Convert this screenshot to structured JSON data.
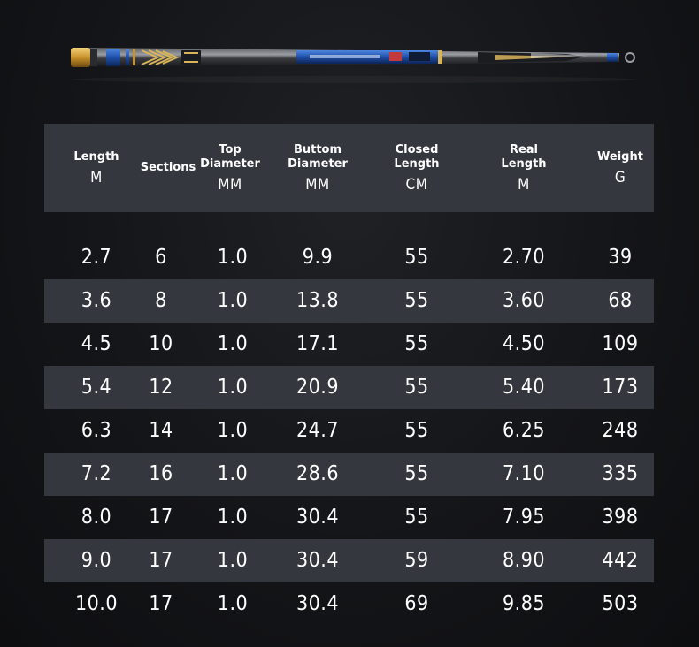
{
  "headers": [
    {
      "name": "Length",
      "unit": "M"
    },
    {
      "name": "Sections",
      "unit": ""
    },
    {
      "name": "Top\nDiameter",
      "unit": "MM"
    },
    {
      "name": "Buttom\nDiameter",
      "unit": "MM"
    },
    {
      "name": "Closed\nLength",
      "unit": "CM"
    },
    {
      "name": "Real\nLength",
      "unit": "M"
    },
    {
      "name": "Weight",
      "unit": "G"
    }
  ],
  "rows": [
    [
      "2.7",
      "6",
      "1.0",
      "9.9",
      "55",
      "2.70",
      "39"
    ],
    [
      "3.6",
      "8",
      "1.0",
      "13.8",
      "55",
      "3.60",
      "68"
    ],
    [
      "4.5",
      "10",
      "1.0",
      "17.1",
      "55",
      "4.50",
      "109"
    ],
    [
      "5.4",
      "12",
      "1.0",
      "20.9",
      "55",
      "5.40",
      "173"
    ],
    [
      "6.3",
      "14",
      "1.0",
      "24.7",
      "55",
      "6.25",
      "248"
    ],
    [
      "7.2",
      "16",
      "1.0",
      "28.6",
      "55",
      "7.10",
      "335"
    ],
    [
      "8.0",
      "17",
      "1.0",
      "30.4",
      "55",
      "7.95",
      "398"
    ],
    [
      "9.0",
      "17",
      "1.0",
      "30.4",
      "59",
      "8.90",
      "442"
    ],
    [
      "10.0",
      "17",
      "1.0",
      "30.4",
      "69",
      "9.85",
      "503"
    ]
  ],
  "colors": {
    "background": "#141518",
    "stripe": "#34373e",
    "text": "#ffffff",
    "rod_gold": "#d4a53a",
    "rod_blue": "#1f4fa8"
  }
}
